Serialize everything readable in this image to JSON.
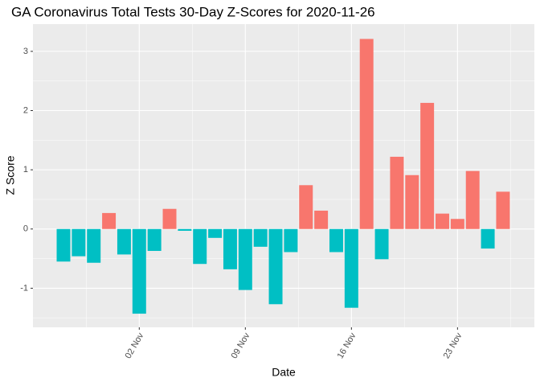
{
  "chart_data": {
    "type": "bar",
    "title": "GA Coronavirus Total Tests 30-Day Z-Scores for 2020-11-26",
    "x_label": "Date",
    "y_label": "Z Score",
    "categories": [
      null,
      null,
      null,
      null,
      null,
      "02 Nov",
      null,
      null,
      null,
      null,
      null,
      null,
      "09 Nov",
      null,
      null,
      null,
      null,
      null,
      null,
      "16 Nov",
      null,
      null,
      null,
      null,
      null,
      null,
      "23 Nov",
      null,
      null,
      null
    ],
    "values": [
      -0.55,
      -0.46,
      -0.57,
      0.27,
      -0.43,
      -1.43,
      -0.37,
      0.34,
      -0.03,
      -0.59,
      -0.15,
      -0.68,
      -1.03,
      -0.3,
      -1.27,
      -0.39,
      0.74,
      0.31,
      -0.39,
      -1.33,
      3.21,
      -0.51,
      1.22,
      0.91,
      2.13,
      0.26,
      0.17,
      0.98,
      -0.33,
      0.63
    ],
    "colors": {
      "positive": "#F8766D",
      "negative": "#00BFC4"
    },
    "ylim": [
      -1.66,
      3.46
    ],
    "yticks": [
      -1,
      0,
      1,
      2,
      3
    ],
    "grid": true
  }
}
